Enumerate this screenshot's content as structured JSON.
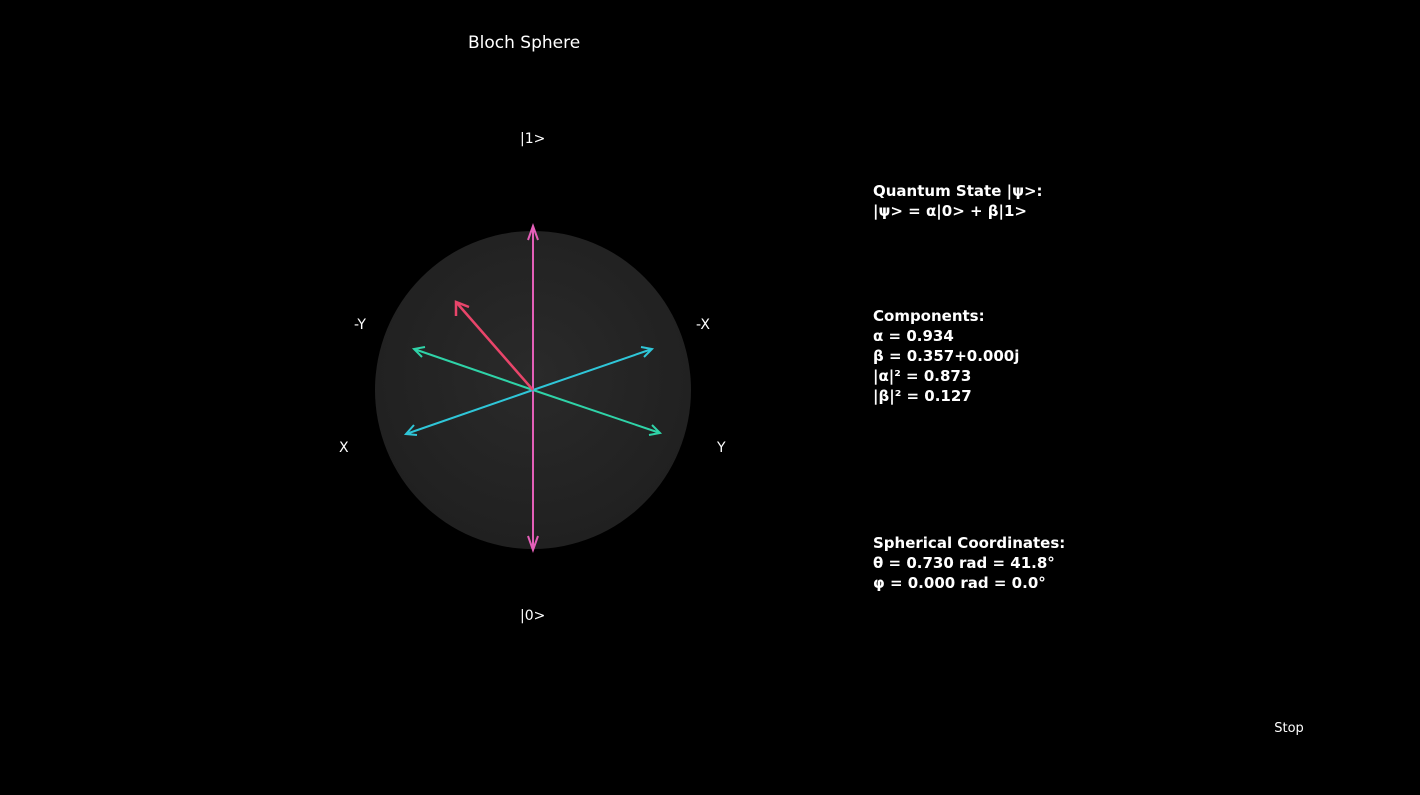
{
  "title": "Bloch Sphere",
  "axis_labels": {
    "one": "|1>",
    "zero": "|0>",
    "neg_y": "-Y",
    "neg_x": "-X",
    "x": "X",
    "y": "Y"
  },
  "state": {
    "heading": "Quantum State |ψ>:",
    "formula": "|ψ> = α|0> + β|1>"
  },
  "components": {
    "heading": "Components:",
    "alpha": "α = 0.934",
    "beta": "β = 0.357+0.000j",
    "alpha_sq": "|α|² = 0.873",
    "beta_sq": "|β|² = 0.127"
  },
  "spherical": {
    "heading": "Spherical Coordinates:",
    "theta": "θ = 0.730 rad = 41.8°",
    "phi": "φ = 0.000 rad = 0.0°"
  },
  "controls": {
    "stop_label": "Stop"
  },
  "colors": {
    "background": "#000000",
    "sphere": "#262626",
    "z_axis": "#e45fb8",
    "x_axis": "#2ec9b8",
    "y_axis": "#2fb7d6",
    "state_vector": "#e8456a"
  }
}
